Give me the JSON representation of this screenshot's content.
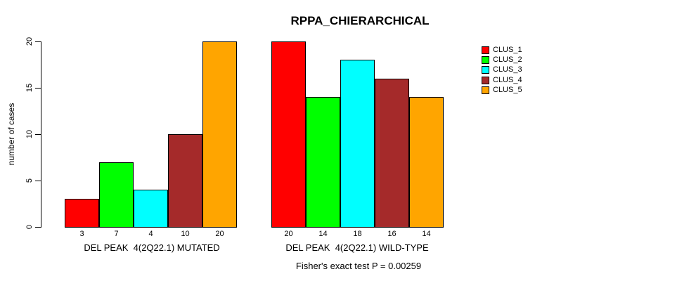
{
  "chart_data": {
    "type": "bar",
    "title": "RPPA_CHIERARCHICAL",
    "xlabel": "",
    "ylabel": "number of cases",
    "ylim": [
      0,
      20
    ],
    "yticks": [
      0,
      5,
      10,
      15,
      20
    ],
    "grid": false,
    "legend_position": "top-right",
    "categories": [
      "DEL PEAK  4(2Q22.1) MUTATED",
      "DEL PEAK  4(2Q22.1) WILD-TYPE"
    ],
    "series": [
      {
        "name": "CLUS_1",
        "color": "#FF0000",
        "values": [
          3,
          20
        ]
      },
      {
        "name": "CLUS_2",
        "color": "#00FF00",
        "values": [
          7,
          14
        ]
      },
      {
        "name": "CLUS_3",
        "color": "#00FFFF",
        "values": [
          4,
          18
        ]
      },
      {
        "name": "CLUS_4",
        "color": "#A52A2A",
        "values": [
          10,
          16
        ]
      },
      {
        "name": "CLUS_5",
        "color": "#FFA500",
        "values": [
          20,
          14
        ]
      }
    ],
    "bar_value_labels": {
      "group_1": [
        "3",
        "7",
        "4",
        "10",
        "20"
      ],
      "group_2": [
        "20",
        "14",
        "18",
        "16",
        "14"
      ]
    },
    "annotation": "Fisher's exact test P = 0.00259",
    "axis_color": "#000000",
    "background_color": "#FFFFFF"
  }
}
